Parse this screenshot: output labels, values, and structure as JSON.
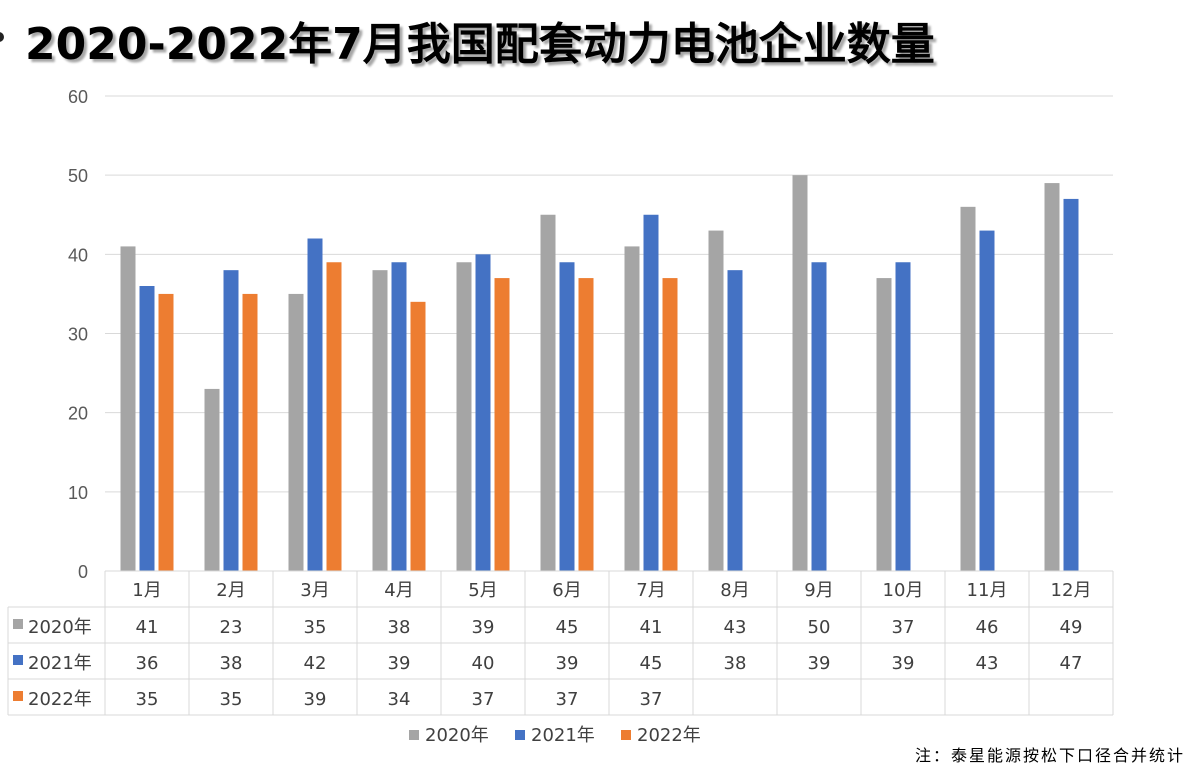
{
  "title": "2020-2022年7月我国配套动力电池企业数量",
  "note": "注：泰星能源按松下口径合并统计",
  "chart_data": {
    "type": "bar",
    "title": "2020-2022年7月我国配套动力电池企业数量",
    "categories": [
      "1月",
      "2月",
      "3月",
      "4月",
      "5月",
      "6月",
      "7月",
      "8月",
      "9月",
      "10月",
      "11月",
      "12月"
    ],
    "ylim": [
      0,
      60
    ],
    "yticks": [
      0,
      10,
      20,
      30,
      40,
      50,
      60
    ],
    "grid": true,
    "legend_position": "bottom",
    "series": [
      {
        "name": "2020年",
        "color": "#A5A5A5",
        "values": [
          41,
          23,
          35,
          38,
          39,
          45,
          41,
          43,
          50,
          37,
          46,
          49
        ]
      },
      {
        "name": "2021年",
        "color": "#4472C4",
        "values": [
          36,
          38,
          42,
          39,
          40,
          39,
          45,
          38,
          39,
          39,
          43,
          47
        ]
      },
      {
        "name": "2022年",
        "color": "#ED7D31",
        "values": [
          35,
          35,
          39,
          34,
          37,
          37,
          37,
          null,
          null,
          null,
          null,
          null
        ]
      }
    ]
  }
}
